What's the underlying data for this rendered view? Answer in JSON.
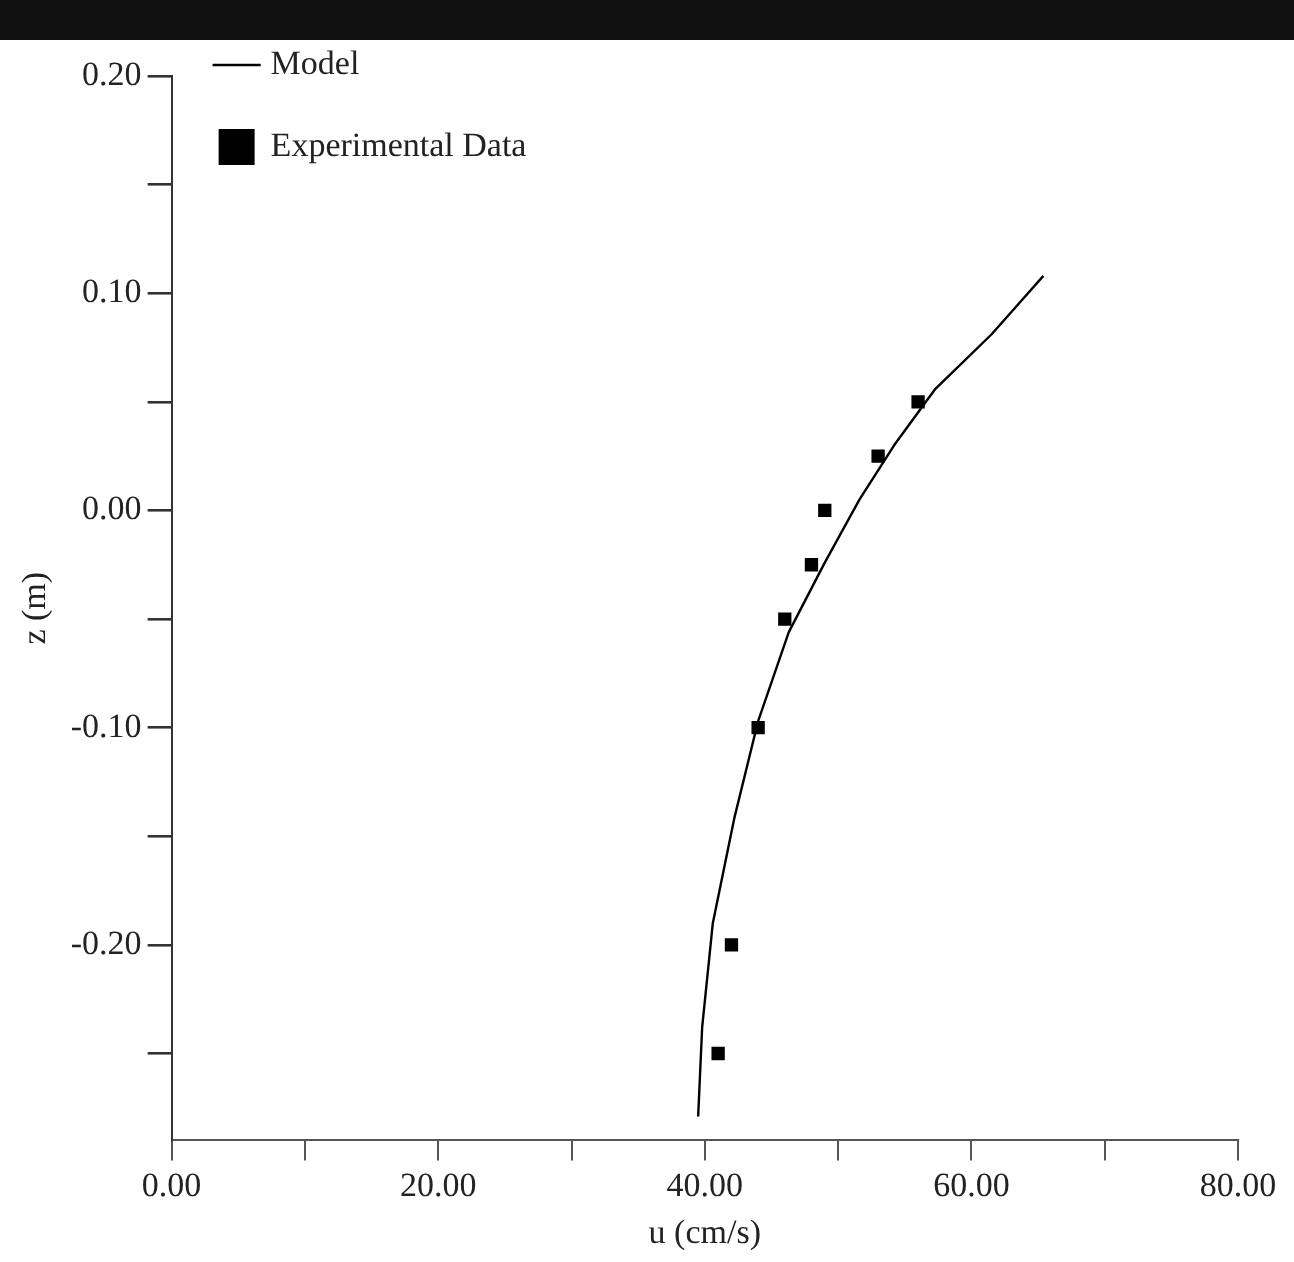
{
  "chart_data": {
    "type": "scatter",
    "xlabel": "u (cm/s)",
    "ylabel": "z (m)",
    "legend": "top left",
    "grid": false,
    "xlim": [
      0,
      80
    ],
    "ylim": [
      -0.29,
      0.2
    ],
    "xticks": [
      {
        "value": 0,
        "label": "0.00"
      },
      {
        "value": 10,
        "label": null
      },
      {
        "value": 20,
        "label": "20.00"
      },
      {
        "value": 30,
        "label": null
      },
      {
        "value": 40,
        "label": "40.00"
      },
      {
        "value": 50,
        "label": null
      },
      {
        "value": 60,
        "label": "60.00"
      },
      {
        "value": 70,
        "label": null
      },
      {
        "value": 80,
        "label": "80.00"
      }
    ],
    "yticks": [
      {
        "value": -0.25,
        "label": null
      },
      {
        "value": -0.2,
        "label": "-0.20"
      },
      {
        "value": -0.15,
        "label": null
      },
      {
        "value": -0.1,
        "label": "-0.10"
      },
      {
        "value": -0.05,
        "label": null
      },
      {
        "value": 0,
        "label": "0.00"
      },
      {
        "value": 0.05,
        "label": null
      },
      {
        "value": 0.1,
        "label": "0.10"
      },
      {
        "value": 0.15,
        "label": null
      },
      {
        "value": 0.2,
        "label": "0.20"
      }
    ],
    "series": [
      {
        "name": "Model",
        "type": "line",
        "color": "#000000",
        "marker": "none",
        "line_style": "solid",
        "x": [
          39.5,
          39.8,
          40.6,
          42.2,
          44.0,
          46.3,
          49.0,
          51.6,
          54.2,
          57.3,
          61.5,
          65.4
        ],
        "values": [
          -0.279,
          -0.238,
          -0.19,
          -0.142,
          -0.097,
          -0.056,
          -0.024,
          0.005,
          0.03,
          0.056,
          0.081,
          0.108
        ]
      },
      {
        "name": "Experimental Data",
        "type": "scatter",
        "color": "#000000",
        "marker": "square",
        "x": [
          56,
          53,
          49,
          48,
          46,
          44,
          42,
          41
        ],
        "values": [
          0.05,
          0.025,
          0,
          -0.025,
          -0.05,
          -0.1,
          -0.2,
          -0.25
        ]
      }
    ]
  }
}
